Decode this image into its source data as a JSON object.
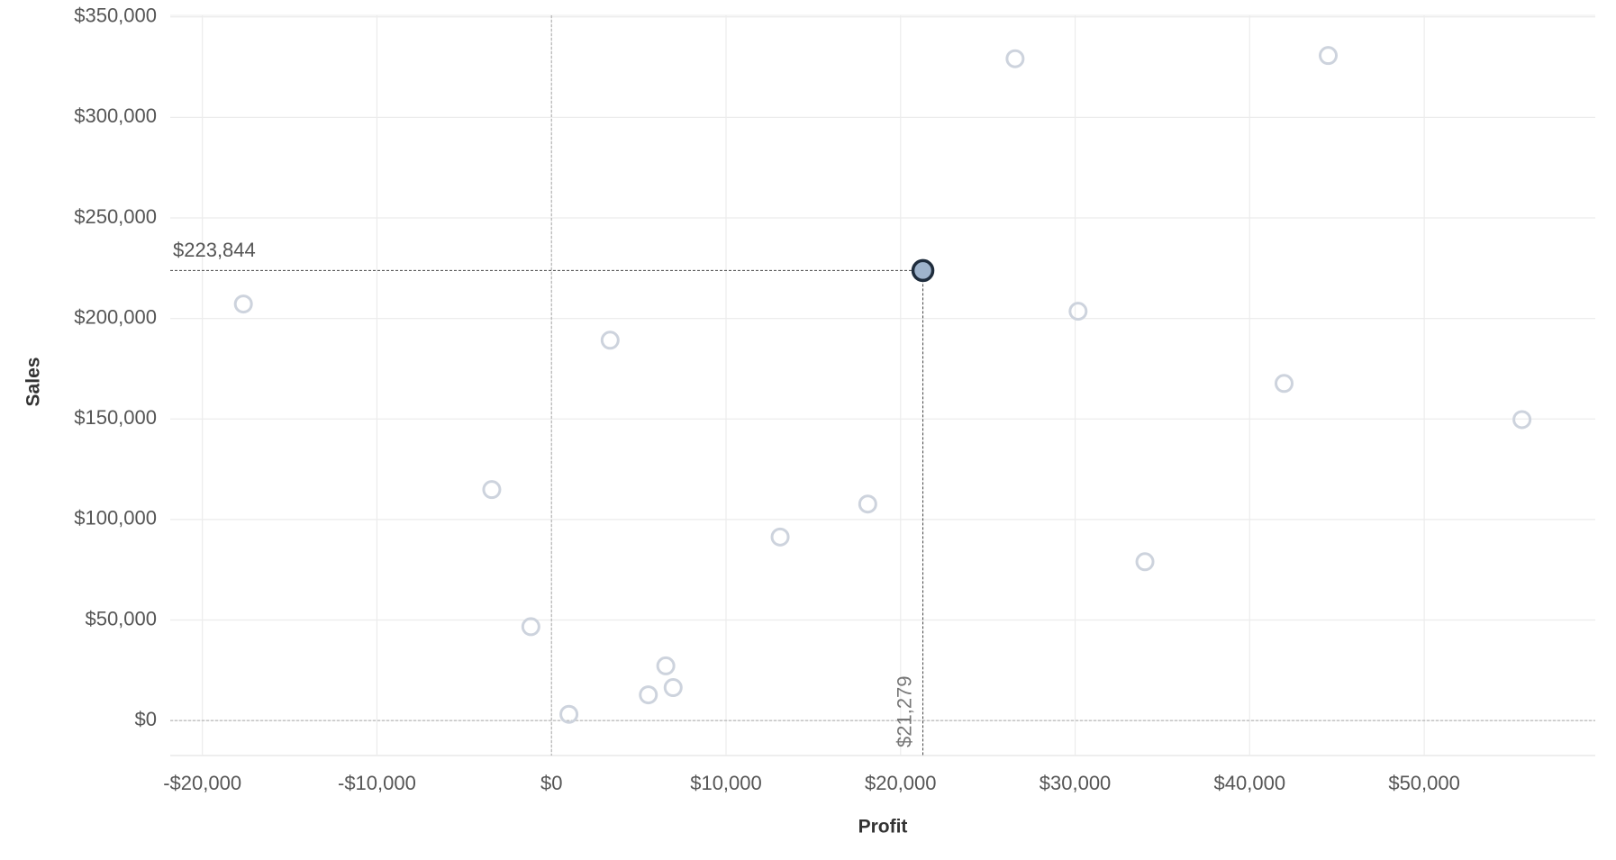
{
  "chart_data": {
    "type": "scatter",
    "x_label": "Profit",
    "y_label": "Sales",
    "x": [
      -17650,
      -3420,
      -1180,
      1000,
      3360,
      5550,
      6550,
      6970,
      13100,
      18120,
      21279,
      26560,
      30170,
      34000,
      41970,
      44500,
      55600
    ],
    "values": [
      207200,
      114900,
      46700,
      3100,
      189200,
      12800,
      27200,
      16400,
      91300,
      107700,
      223844,
      329200,
      203600,
      79000,
      167700,
      330800,
      149700
    ],
    "value_labels": [
      null,
      null,
      null,
      null,
      null,
      null,
      null,
      null,
      null,
      null,
      "$223,844",
      null,
      null,
      null,
      null,
      null,
      null
    ],
    "x_value_labels": [
      null,
      null,
      null,
      null,
      null,
      null,
      null,
      null,
      null,
      null,
      "$21,279",
      null,
      null,
      null,
      null,
      null,
      null
    ],
    "color": "#cdd3dd",
    "highlight_color": "#9fb4cc",
    "xlim": [
      -21840,
      59800
    ],
    "ylim": [
      -17400,
      350800
    ],
    "xticks": [
      {
        "value": -20000,
        "label": "-$20,000"
      },
      {
        "value": -10000,
        "label": "-$10,000"
      },
      {
        "value": 0,
        "label": "$0"
      },
      {
        "value": 10000,
        "label": "$10,000"
      },
      {
        "value": 20000,
        "label": "$20,000"
      },
      {
        "value": 30000,
        "label": "$30,000"
      },
      {
        "value": 40000,
        "label": "$40,000"
      },
      {
        "value": 50000,
        "label": "$50,000"
      }
    ],
    "yticks": [
      {
        "value": 0,
        "label": "$0"
      },
      {
        "value": 50000,
        "label": "$50,000"
      },
      {
        "value": 100000,
        "label": "$100,000"
      },
      {
        "value": 150000,
        "label": "$150,000"
      },
      {
        "value": 200000,
        "label": "$200,000"
      },
      {
        "value": 250000,
        "label": "$250,000"
      },
      {
        "value": 300000,
        "label": "$300,000"
      },
      {
        "value": 350000,
        "label": "$350,000"
      }
    ],
    "grid": true
  }
}
